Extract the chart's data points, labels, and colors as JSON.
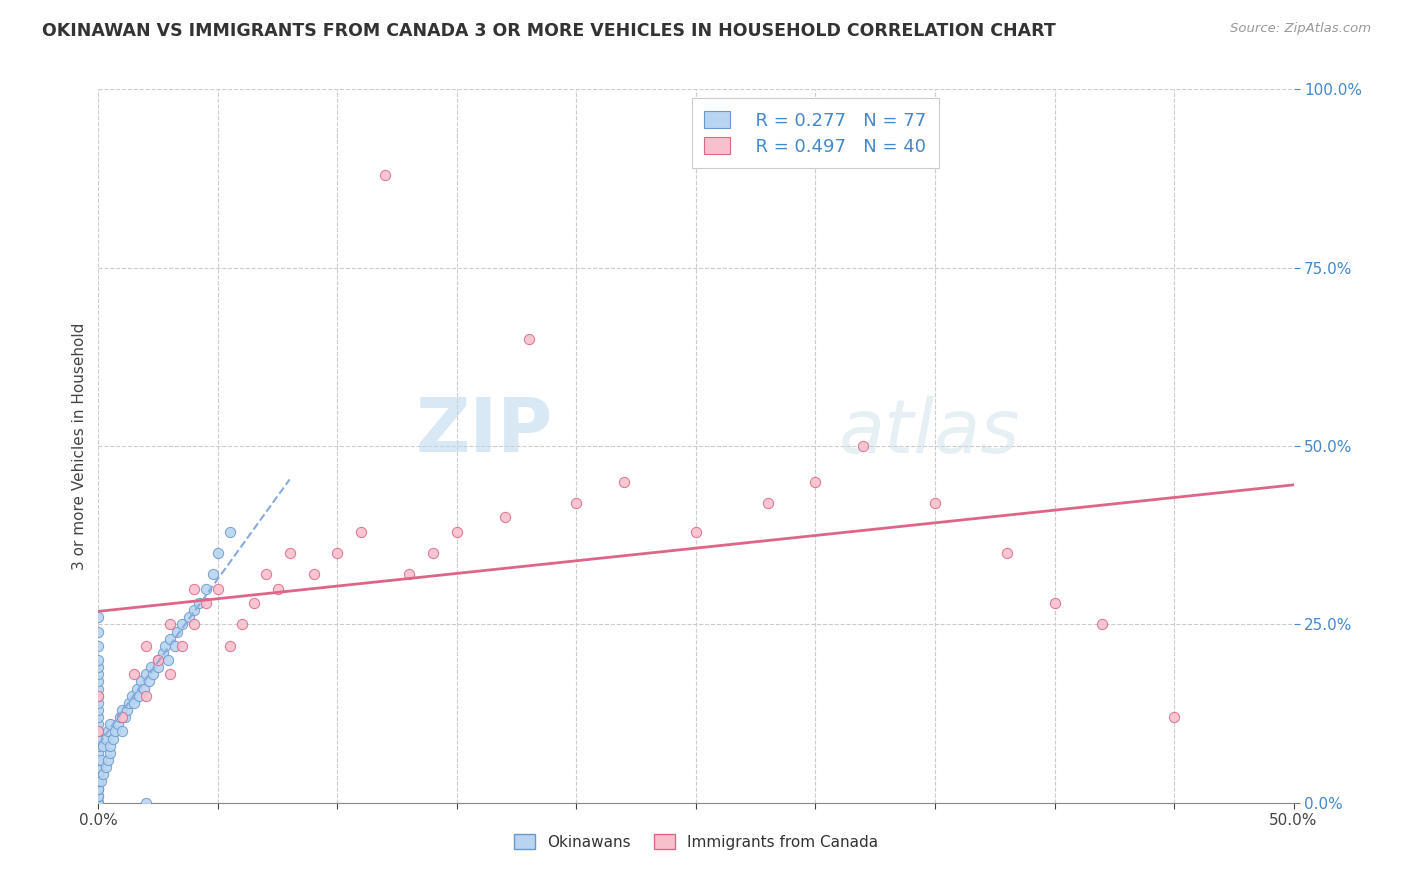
{
  "title": "OKINAWAN VS IMMIGRANTS FROM CANADA 3 OR MORE VEHICLES IN HOUSEHOLD CORRELATION CHART",
  "source_text": "Source: ZipAtlas.com",
  "ylabel_label": "3 or more Vehicles in Household",
  "legend_label1": "Okinawans",
  "legend_label2": "Immigrants from Canada",
  "legend_r1": "R = 0.277",
  "legend_n1": "N = 77",
  "legend_r2": "R = 0.497",
  "legend_n2": "N = 40",
  "watermark_zip": "ZIP",
  "watermark_atlas": "atlas",
  "color_blue_fill": "#b8d4f0",
  "color_blue_edge": "#6699cc",
  "color_pink_fill": "#f8c0cc",
  "color_pink_edge": "#dd6688",
  "color_trendline_blue": "#88aadd",
  "color_trendline_pink": "#dd6688",
  "xmin": 0.0,
  "xmax": 0.5,
  "ymin": 0.0,
  "ymax": 1.0,
  "ytick_values": [
    0.0,
    0.25,
    0.5,
    0.75,
    1.0
  ],
  "ytick_labels": [
    "0.0%",
    "25.0%",
    "50.0%",
    "75.0%",
    "100.0%"
  ],
  "xtick_show": [
    0.0,
    0.5
  ],
  "xtick_labels_show": [
    "0.0%",
    "50.0%"
  ],
  "okinawan_x": [
    0.0,
    0.0,
    0.0,
    0.0,
    0.0,
    0.0,
    0.0,
    0.0,
    0.0,
    0.0,
    0.0,
    0.0,
    0.0,
    0.0,
    0.0,
    0.0,
    0.0,
    0.0,
    0.0,
    0.0,
    0.0,
    0.0,
    0.0,
    0.0,
    0.0,
    0.0,
    0.0,
    0.0,
    0.0,
    0.0,
    0.001,
    0.001,
    0.002,
    0.002,
    0.003,
    0.003,
    0.004,
    0.004,
    0.005,
    0.005,
    0.005,
    0.006,
    0.007,
    0.008,
    0.009,
    0.01,
    0.01,
    0.011,
    0.012,
    0.013,
    0.014,
    0.015,
    0.016,
    0.017,
    0.018,
    0.019,
    0.02,
    0.021,
    0.022,
    0.023,
    0.025,
    0.025,
    0.027,
    0.028,
    0.029,
    0.03,
    0.032,
    0.033,
    0.035,
    0.038,
    0.04,
    0.042,
    0.045,
    0.048,
    0.05,
    0.055,
    0.02
  ],
  "okinawan_y": [
    0.0,
    0.0,
    0.0,
    0.01,
    0.01,
    0.02,
    0.02,
    0.03,
    0.03,
    0.04,
    0.05,
    0.05,
    0.06,
    0.07,
    0.08,
    0.09,
    0.1,
    0.11,
    0.12,
    0.13,
    0.14,
    0.15,
    0.16,
    0.17,
    0.18,
    0.19,
    0.2,
    0.22,
    0.24,
    0.26,
    0.03,
    0.06,
    0.04,
    0.08,
    0.05,
    0.09,
    0.06,
    0.1,
    0.07,
    0.11,
    0.08,
    0.09,
    0.1,
    0.11,
    0.12,
    0.1,
    0.13,
    0.12,
    0.13,
    0.14,
    0.15,
    0.14,
    0.16,
    0.15,
    0.17,
    0.16,
    0.18,
    0.17,
    0.19,
    0.18,
    0.2,
    0.19,
    0.21,
    0.22,
    0.2,
    0.23,
    0.22,
    0.24,
    0.25,
    0.26,
    0.27,
    0.28,
    0.3,
    0.32,
    0.35,
    0.38,
    0.0
  ],
  "canada_x": [
    0.0,
    0.0,
    0.01,
    0.015,
    0.02,
    0.02,
    0.025,
    0.03,
    0.03,
    0.035,
    0.04,
    0.04,
    0.045,
    0.05,
    0.055,
    0.06,
    0.065,
    0.07,
    0.075,
    0.08,
    0.09,
    0.1,
    0.11,
    0.12,
    0.13,
    0.14,
    0.15,
    0.17,
    0.18,
    0.2,
    0.22,
    0.25,
    0.28,
    0.3,
    0.32,
    0.35,
    0.38,
    0.4,
    0.42,
    0.45
  ],
  "canada_y": [
    0.1,
    0.15,
    0.12,
    0.18,
    0.15,
    0.22,
    0.2,
    0.18,
    0.25,
    0.22,
    0.25,
    0.3,
    0.28,
    0.3,
    0.22,
    0.25,
    0.28,
    0.32,
    0.3,
    0.35,
    0.32,
    0.35,
    0.38,
    0.88,
    0.32,
    0.35,
    0.38,
    0.4,
    0.65,
    0.42,
    0.45,
    0.38,
    0.42,
    0.45,
    0.5,
    0.42,
    0.35,
    0.28,
    0.25,
    0.12
  ]
}
